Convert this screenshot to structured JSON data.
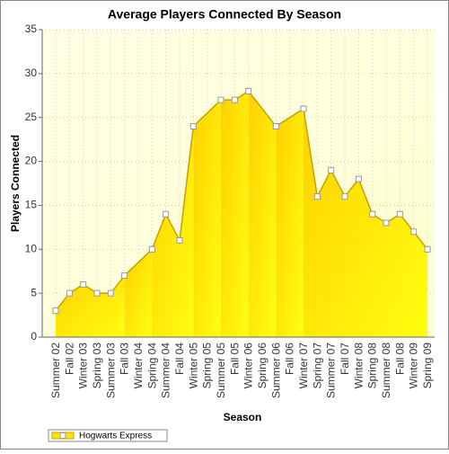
{
  "chart_data": {
    "type": "area",
    "title": "Average Players Connected By Season",
    "x_label": "Season",
    "y_label": "Players Connected",
    "categories": [
      "Summer 02",
      "Fall 02",
      "Winter 03",
      "Spring 03",
      "Summer 03",
      "Fall 03",
      "Winter 04",
      "Spring 04",
      "Summer 04",
      "Fall 04",
      "Winter 05",
      "Spring 05",
      "Summer 05",
      "Fall 05",
      "Winter 06",
      "Spring 06",
      "Summer 06",
      "Fall 06",
      "Winter 07",
      "Spring 07",
      "Summer 07",
      "Fall 07",
      "Winter 08",
      "Spring 08",
      "Summer 08",
      "Fall 08",
      "Winter 09",
      "Spring 09"
    ],
    "series": [
      {
        "name": "Hogwarts Express",
        "color": "#ffe600",
        "values": [
          3,
          5,
          6,
          5,
          5,
          7,
          null,
          10,
          14,
          11,
          24,
          null,
          27,
          27,
          28,
          null,
          24,
          null,
          26,
          16,
          19,
          16,
          18,
          14,
          13,
          14,
          12,
          10
        ]
      }
    ],
    "ylim": [
      0,
      35
    ],
    "yticks": [
      0,
      5,
      10,
      15,
      20,
      25,
      30,
      35
    ],
    "grid": true
  }
}
